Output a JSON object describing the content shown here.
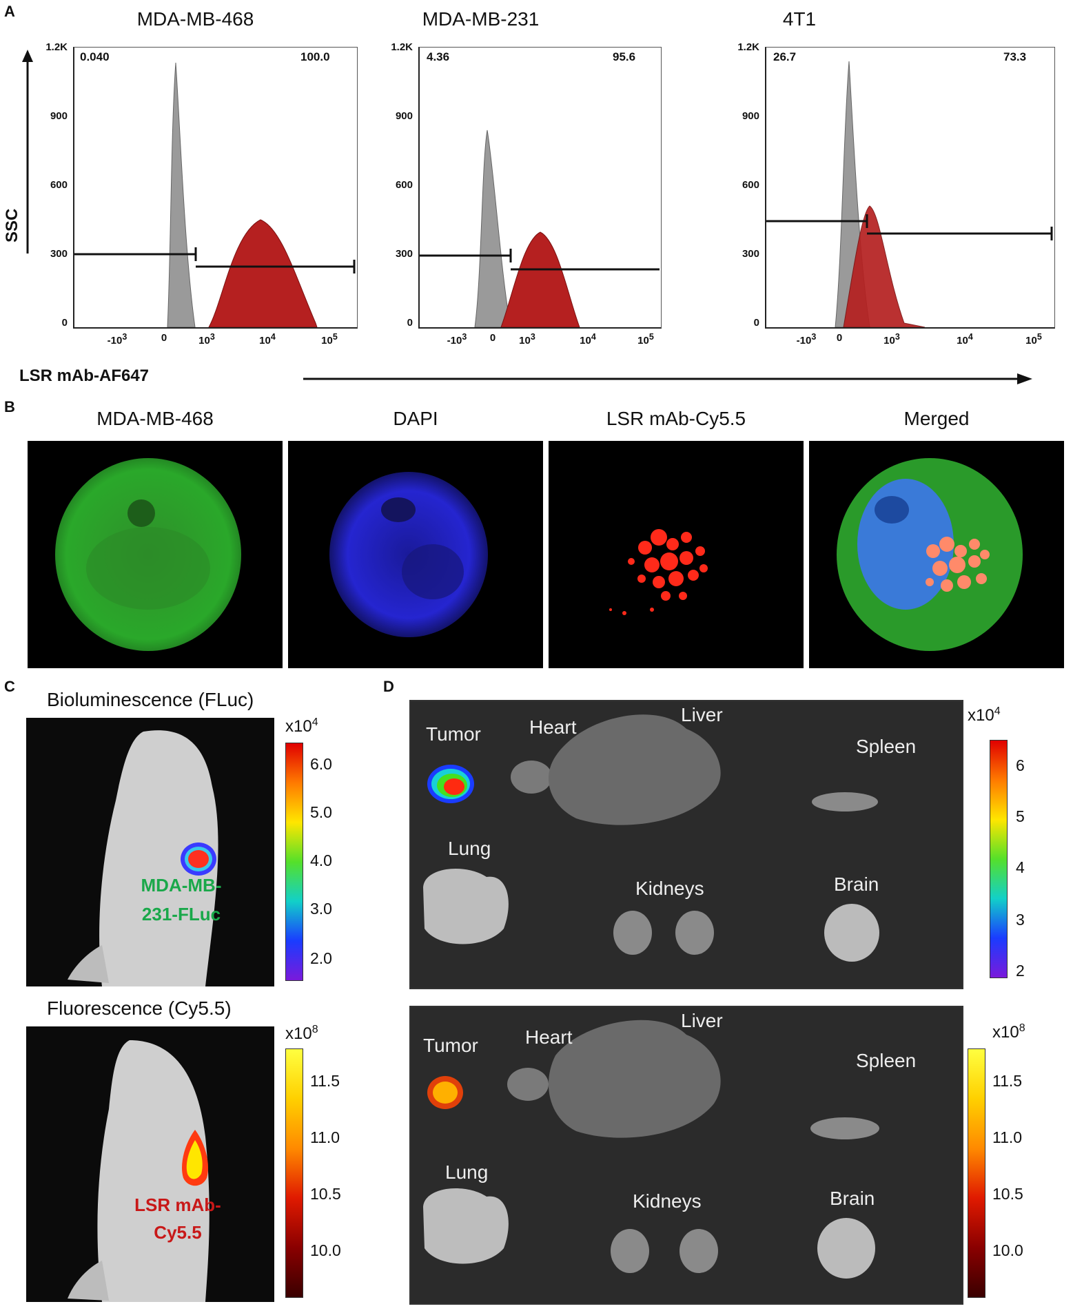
{
  "panel_a": {
    "letter": "A",
    "y_axis_label": "SSC",
    "x_axis_label": "LSR mAb-AF647",
    "plots": [
      {
        "title": "MDA-MB-468",
        "left_pct": "0.040",
        "right_pct": "100.0"
      },
      {
        "title": "MDA-MB-231",
        "left_pct": "4.36",
        "right_pct": "95.6"
      },
      {
        "title": "4T1",
        "left_pct": "26.7",
        "right_pct": "73.3"
      }
    ],
    "y_ticks": [
      "1.2K",
      "900",
      "600",
      "300",
      "0"
    ],
    "x_ticks": [
      "-10",
      "0",
      "10",
      "10",
      "10"
    ],
    "x_tick_exps": [
      "3",
      "",
      "3",
      "4",
      "5"
    ],
    "colors": {
      "control": "#9a9a9a",
      "stained": "#b52020"
    }
  },
  "panel_b": {
    "letter": "B",
    "titles": [
      "MDA-MB-468",
      "DAPI",
      "LSR mAb-Cy5.5",
      "Merged"
    ]
  },
  "panel_c": {
    "letter": "C",
    "top_title": "Bioluminescence (FLuc)",
    "top_label_line1": "MDA-MB-",
    "top_label_line2": "231-FLuc",
    "top_scale_exp_base": "x10",
    "top_scale_exp": "4",
    "top_scale_ticks": [
      "6.0",
      "5.0",
      "4.0",
      "3.0",
      "2.0"
    ],
    "bottom_title": "Fluorescence (Cy5.5)",
    "bottom_label_line1": "LSR mAb-",
    "bottom_label_line2": "Cy5.5",
    "bottom_scale_exp_base": "x10",
    "bottom_scale_exp": "8",
    "bottom_scale_ticks": [
      "11.5",
      "11.0",
      "10.5",
      "10.0"
    ]
  },
  "panel_d": {
    "letter": "D",
    "organs": [
      "Tumor",
      "Heart",
      "Liver",
      "Spleen",
      "Lung",
      "Kidneys",
      "Brain"
    ],
    "top_scale_exp_base": "x10",
    "top_scale_exp": "4",
    "top_scale_ticks": [
      "6",
      "5",
      "4",
      "3",
      "2"
    ],
    "bottom_scale_exp_base": "x10",
    "bottom_scale_exp": "8",
    "bottom_scale_ticks": [
      "11.5",
      "11.0",
      "10.5",
      "10.0"
    ]
  }
}
